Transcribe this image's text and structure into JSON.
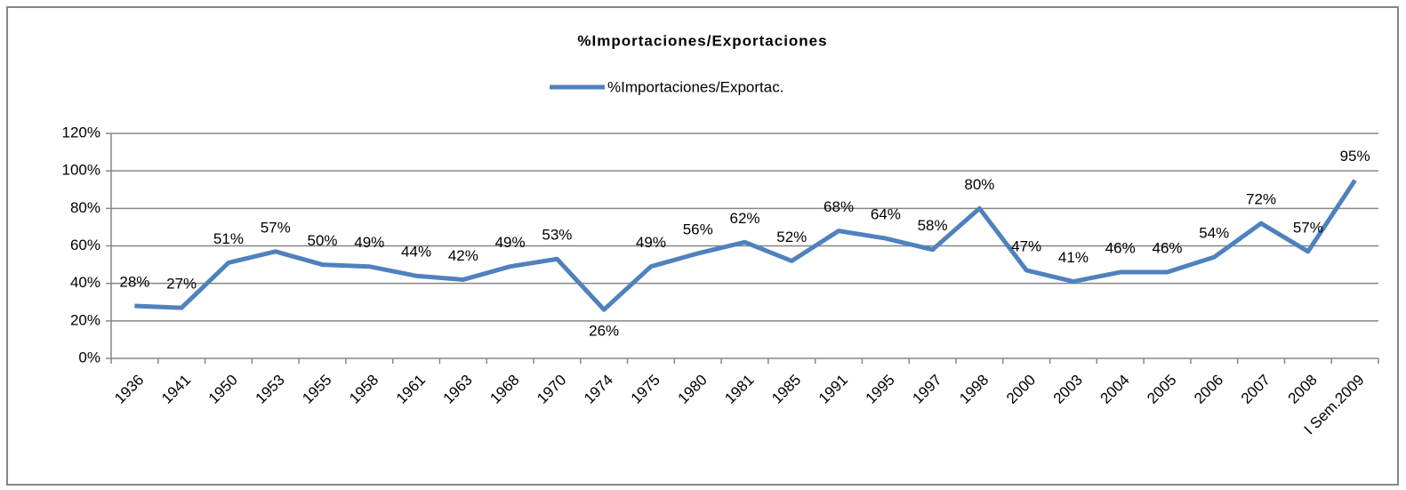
{
  "chart_data": {
    "type": "line",
    "title": "%Importaciones/Exportaciones",
    "categories": [
      "1936",
      "1941",
      "1950",
      "1953",
      "1955",
      "1958",
      "1961",
      "1963",
      "1968",
      "1970",
      "1974",
      "1975",
      "1980",
      "1981",
      "1985",
      "1991",
      "1995",
      "1997",
      "1998",
      "2000",
      "2003",
      "2004",
      "2005",
      "2006",
      "2007",
      "2008",
      "I Sem.2009"
    ],
    "series": [
      {
        "name": "%Importaciones/Exportac.",
        "color": "#4f81bd",
        "values": [
          28,
          27,
          51,
          57,
          50,
          49,
          44,
          42,
          49,
          53,
          26,
          49,
          56,
          62,
          52,
          68,
          64,
          58,
          80,
          47,
          41,
          46,
          46,
          54,
          72,
          57,
          95
        ],
        "value_labels": [
          "28%",
          "27%",
          "51%",
          "57%",
          "50%",
          "49%",
          "44%",
          "42%",
          "49%",
          "53%",
          "26%",
          "49%",
          "56%",
          "62%",
          "52%",
          "68%",
          "64%",
          "58%",
          "80%",
          "47%",
          "41%",
          "46%",
          "46%",
          "54%",
          "72%",
          "57%",
          "95%"
        ]
      }
    ],
    "ylim": [
      0,
      120
    ],
    "yticks": [
      {
        "value": 0,
        "label": "0%"
      },
      {
        "value": 20,
        "label": "20%"
      },
      {
        "value": 40,
        "label": "40%"
      },
      {
        "value": 60,
        "label": "60%"
      },
      {
        "value": 80,
        "label": "80%"
      },
      {
        "value": 100,
        "label": "100%"
      },
      {
        "value": 120,
        "label": "120%"
      }
    ],
    "grid": true,
    "legend": "top"
  }
}
